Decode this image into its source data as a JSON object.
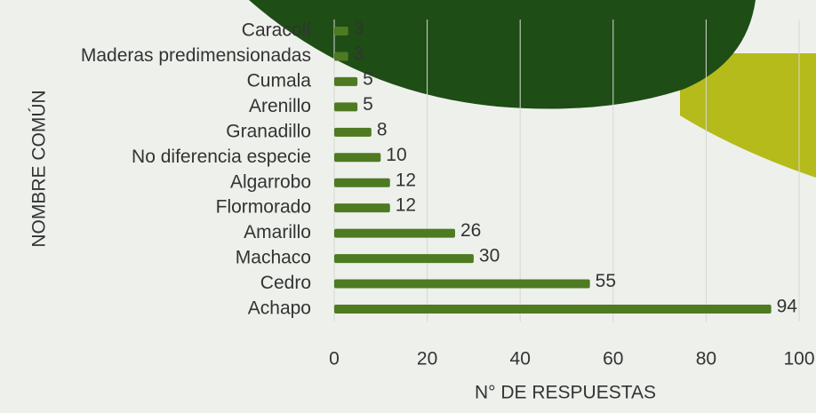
{
  "chart_data": {
    "type": "bar",
    "orientation": "horizontal",
    "categories": [
      "Caracolí",
      "Maderas predimensionadas",
      "Cumala",
      "Arenillo",
      "Granadillo",
      "No diferencia especie",
      "Algarrobo",
      "Flormorado",
      "Amarillo",
      "Machaco",
      "Cedro",
      "Achapo"
    ],
    "values": [
      3,
      3,
      5,
      5,
      8,
      10,
      12,
      12,
      26,
      30,
      55,
      94
    ],
    "color": "#4e7a22",
    "xlim": [
      0,
      100
    ],
    "xticks": [
      0,
      20,
      40,
      60,
      80,
      100
    ],
    "grid": true,
    "xlabel": "N° DE RESPUESTAS",
    "ylabel": "NOMBRE COMÚN"
  }
}
